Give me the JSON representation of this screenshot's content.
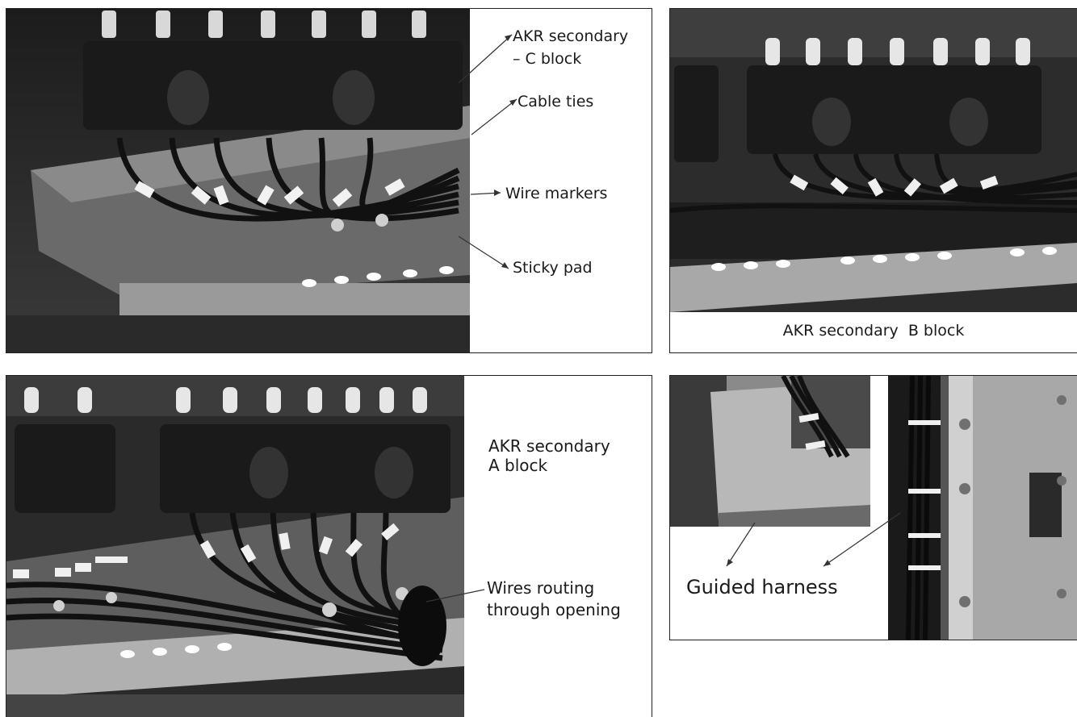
{
  "panels": {
    "c_block": {
      "labels": {
        "secondary_line1": "AKR secondary",
        "secondary_line2": "– C block",
        "cable_ties": "Cable ties",
        "wire_markers": "Wire markers",
        "sticky_pad": "Sticky pad"
      }
    },
    "b_block": {
      "caption": "AKR secondary  B block"
    },
    "a_block": {
      "caption_line1": "AKR secondary",
      "caption_line2": "A block",
      "wires_line1": "Wires routing",
      "wires_line2": "through opening"
    },
    "harness": {
      "caption": "Guided harness"
    }
  }
}
